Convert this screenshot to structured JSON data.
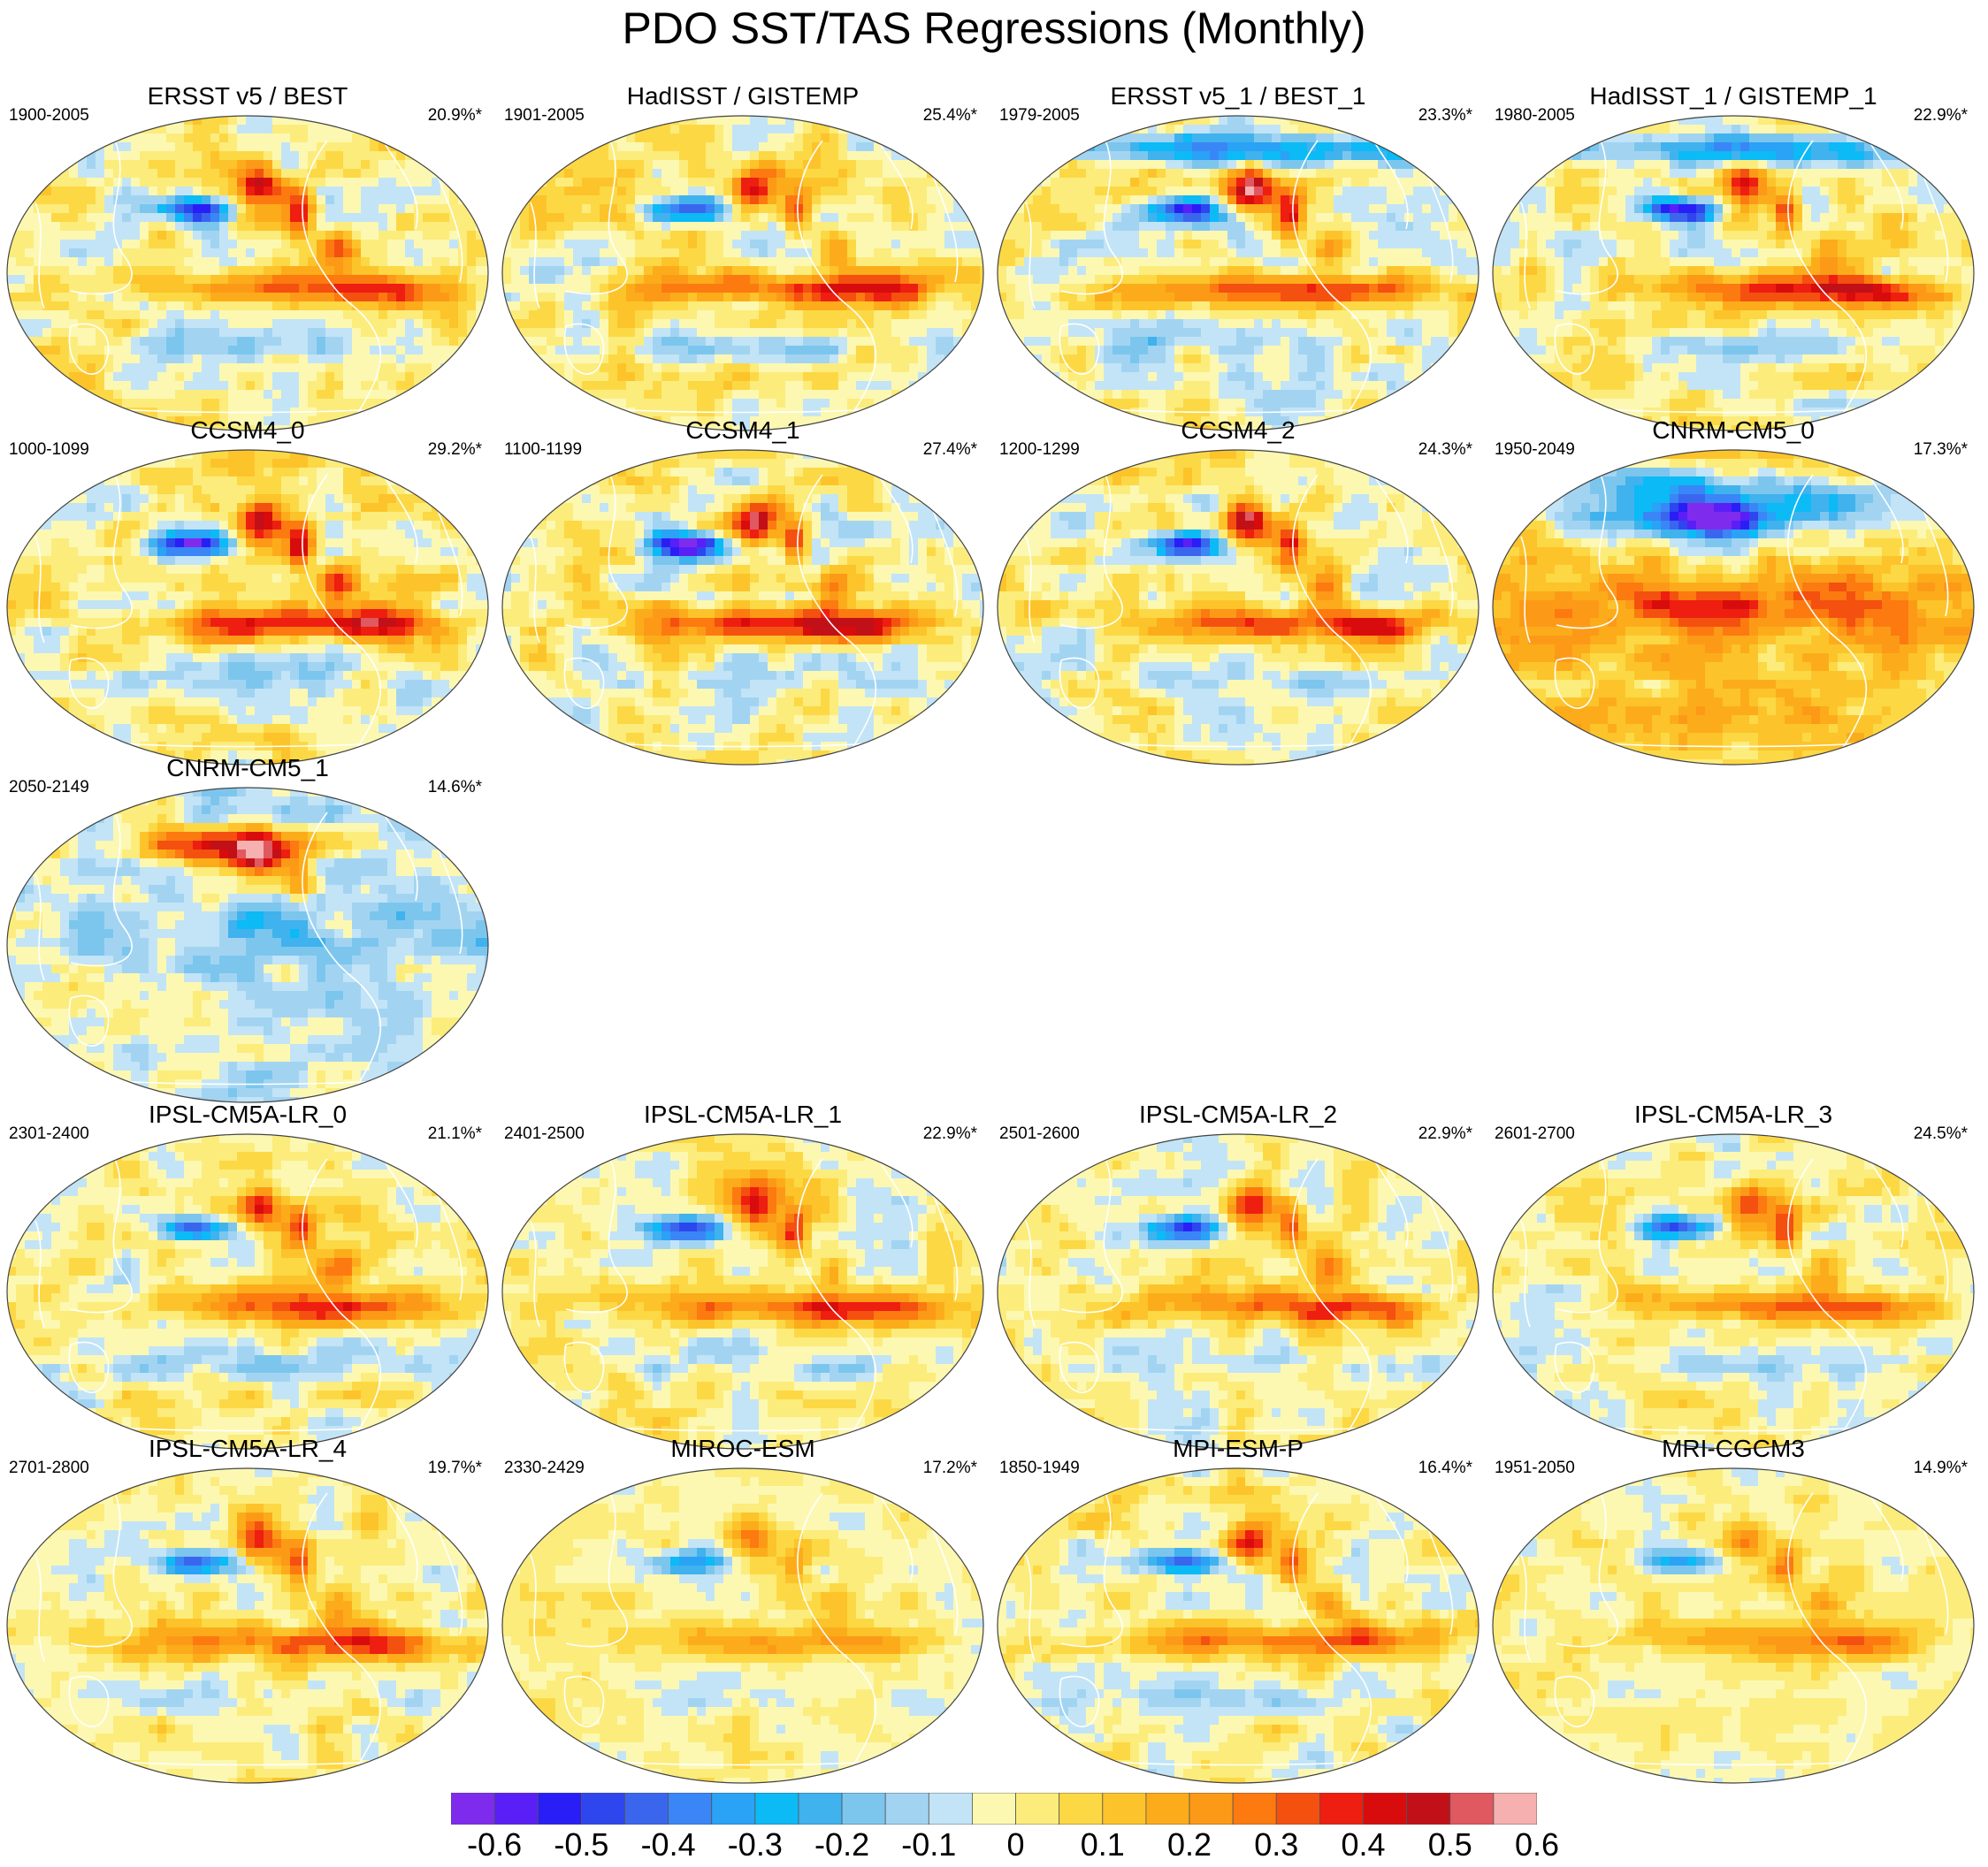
{
  "title": "PDO SST/TAS Regressions (Monthly)",
  "panels": [
    {
      "title": "ERSST v5 / BEST",
      "period": "1900-2005",
      "pct": "20.9%*",
      "pattern": "obs",
      "strength": 1.0
    },
    {
      "title": "HadISST / GISTEMP",
      "period": "1901-2005",
      "pct": "25.4%*",
      "pattern": "obs",
      "strength": 1.0
    },
    {
      "title": "ERSST v5_1 / BEST_1",
      "period": "1979-2005",
      "pct": "23.3%*",
      "pattern": "obs-recent",
      "strength": 1.0
    },
    {
      "title": "HadISST_1 / GISTEMP_1",
      "period": "1980-2005",
      "pct": "22.9%*",
      "pattern": "obs-recent",
      "strength": 1.0
    },
    {
      "title": "CCSM4_0",
      "period": "1000-1099",
      "pct": "29.2%*",
      "pattern": "model",
      "strength": 1.1
    },
    {
      "title": "CCSM4_1",
      "period": "1100-1199",
      "pct": "27.4%*",
      "pattern": "model",
      "strength": 1.1
    },
    {
      "title": "CCSM4_2",
      "period": "1200-1299",
      "pct": "24.3%*",
      "pattern": "model",
      "strength": 1.0
    },
    {
      "title": "CNRM-CM5_0",
      "period": "1950-2049",
      "pct": "17.3%*",
      "pattern": "cold-north",
      "strength": 1.0
    },
    {
      "title": "CNRM-CM5_1",
      "period": "2050-2149",
      "pct": "14.6%*",
      "pattern": "warm-north",
      "strength": 1.0
    },
    {
      "title": "IPSL-CM5A-LR_0",
      "period": "2301-2400",
      "pct": "21.1%*",
      "pattern": "model",
      "strength": 0.9
    },
    {
      "title": "IPSL-CM5A-LR_1",
      "period": "2401-2500",
      "pct": "22.9%*",
      "pattern": "model",
      "strength": 0.9
    },
    {
      "title": "IPSL-CM5A-LR_2",
      "period": "2501-2600",
      "pct": "22.9%*",
      "pattern": "model",
      "strength": 0.9
    },
    {
      "title": "IPSL-CM5A-LR_3",
      "period": "2601-2700",
      "pct": "24.5%*",
      "pattern": "model",
      "strength": 0.9
    },
    {
      "title": "IPSL-CM5A-LR_4",
      "period": "2701-2800",
      "pct": "19.7%*",
      "pattern": "model",
      "strength": 0.85
    },
    {
      "title": "MIROC-ESM",
      "period": "2330-2429",
      "pct": "17.2%*",
      "pattern": "model-weak",
      "strength": 0.7
    },
    {
      "title": "MPI-ESM-P",
      "period": "1850-1949",
      "pct": "16.4%*",
      "pattern": "model",
      "strength": 0.9
    },
    {
      "title": "MRI-CGCM3",
      "period": "1951-2050",
      "pct": "14.9%*",
      "pattern": "model-weak",
      "strength": 0.75
    }
  ],
  "colorbar": {
    "colors": [
      "#7f2bee",
      "#5a1ff6",
      "#2a1ef6",
      "#2e46ee",
      "#3a66ee",
      "#3a86f6",
      "#2aa2f6",
      "#0cbaf6",
      "#40b2ee",
      "#7cc6ee",
      "#a2d4f2",
      "#c2e4f6",
      "#fcf8b2",
      "#fcec7c",
      "#fcd845",
      "#fcc42a",
      "#fcac1a",
      "#fc9a18",
      "#fc7a10",
      "#f45010",
      "#ee1e10",
      "#d80c0c",
      "#c21018",
      "#e05860",
      "#f6b0b0"
    ],
    "labels": [
      "-0.6",
      "-0.5",
      "-0.4",
      "-0.3",
      "-0.2",
      "-0.1",
      "0",
      "0.1",
      "0.2",
      "0.3",
      "0.4",
      "0.5",
      "0.6"
    ]
  }
}
